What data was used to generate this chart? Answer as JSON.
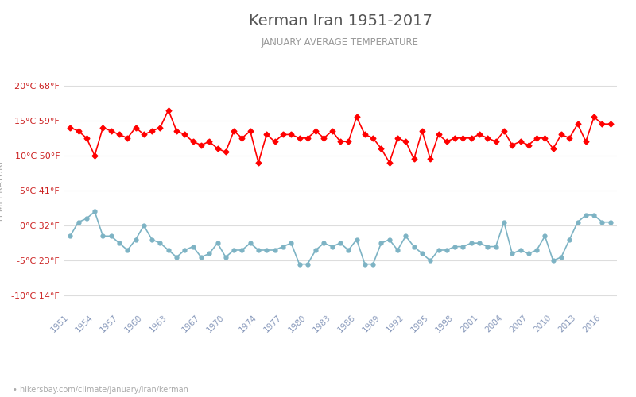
{
  "title": "Kerman Iran 1951-2017",
  "subtitle": "JANUARY AVERAGE TEMPERATURE",
  "ylabel": "TEMPERATURE",
  "footer": "hikersbay.com/climate/january/iran/kerman",
  "yticks_c": [
    -10,
    -5,
    0,
    5,
    10,
    15,
    20
  ],
  "yticks_f": [
    14,
    23,
    32,
    41,
    50,
    59,
    68
  ],
  "xlim": [
    1950.2,
    2017.8
  ],
  "ylim": [
    -12,
    22
  ],
  "years": [
    1951,
    1952,
    1953,
    1954,
    1955,
    1956,
    1957,
    1958,
    1959,
    1960,
    1961,
    1962,
    1963,
    1964,
    1965,
    1966,
    1967,
    1968,
    1969,
    1970,
    1971,
    1972,
    1973,
    1974,
    1975,
    1976,
    1977,
    1978,
    1979,
    1980,
    1981,
    1982,
    1983,
    1984,
    1985,
    1986,
    1987,
    1988,
    1989,
    1990,
    1991,
    1992,
    1993,
    1994,
    1995,
    1996,
    1997,
    1998,
    1999,
    2000,
    2001,
    2002,
    2003,
    2004,
    2005,
    2006,
    2007,
    2008,
    2009,
    2010,
    2011,
    2012,
    2013,
    2014,
    2015,
    2016,
    2017
  ],
  "day": [
    14.0,
    13.5,
    12.5,
    10.0,
    14.0,
    13.5,
    13.0,
    12.5,
    14.0,
    13.0,
    13.5,
    14.0,
    16.5,
    13.5,
    13.0,
    12.0,
    11.5,
    12.0,
    11.0,
    10.5,
    13.5,
    12.5,
    13.5,
    9.0,
    13.0,
    12.0,
    13.0,
    13.0,
    12.5,
    12.5,
    13.5,
    12.5,
    13.5,
    12.0,
    12.0,
    15.5,
    13.0,
    12.5,
    11.0,
    9.0,
    12.5,
    12.0,
    9.5,
    13.5,
    9.5,
    13.0,
    12.0,
    12.5,
    12.5,
    12.5,
    13.0,
    12.5,
    12.0,
    13.5,
    11.5,
    12.0,
    11.5,
    12.5,
    12.5,
    11.0,
    13.0,
    12.5,
    14.5,
    12.0,
    15.5,
    14.5,
    14.5
  ],
  "night": [
    -1.5,
    0.5,
    1.0,
    2.0,
    -1.5,
    -1.5,
    -2.5,
    -3.5,
    -2.0,
    0.0,
    -2.0,
    -2.5,
    -3.5,
    -4.5,
    -3.5,
    -3.0,
    -4.5,
    -4.0,
    -2.5,
    -4.5,
    -3.5,
    -3.5,
    -2.5,
    -3.5,
    -3.5,
    -3.5,
    -3.0,
    -2.5,
    -5.5,
    -5.5,
    -3.5,
    -2.5,
    -3.0,
    -2.5,
    -3.5,
    -2.0,
    -5.5,
    -5.5,
    -2.5,
    -2.0,
    -3.5,
    -1.5,
    -3.0,
    -4.0,
    -5.0,
    -3.5,
    -3.5,
    -3.0,
    -3.0,
    -2.5,
    -2.5,
    -3.0,
    -3.0,
    0.5,
    -4.0,
    -3.5,
    -4.0,
    -3.5,
    -1.5,
    -5.0,
    -4.5,
    -2.0,
    0.5,
    1.5,
    1.5,
    0.5,
    0.5
  ],
  "day_color": "#ff0000",
  "night_color": "#7db3c4",
  "bg_color": "#ffffff",
  "grid_color": "#dddddd",
  "title_color": "#555555",
  "subtitle_color": "#999999",
  "ylabel_color": "#aaaaaa",
  "tick_label_color": "#cc2222",
  "footer_color": "#aaaaaa",
  "xtick_label_color": "#8899bb",
  "xticks": [
    1951,
    1954,
    1957,
    1960,
    1963,
    1967,
    1970,
    1974,
    1977,
    1980,
    1983,
    1986,
    1989,
    1992,
    1995,
    1998,
    2001,
    2004,
    2007,
    2010,
    2013,
    2016
  ]
}
